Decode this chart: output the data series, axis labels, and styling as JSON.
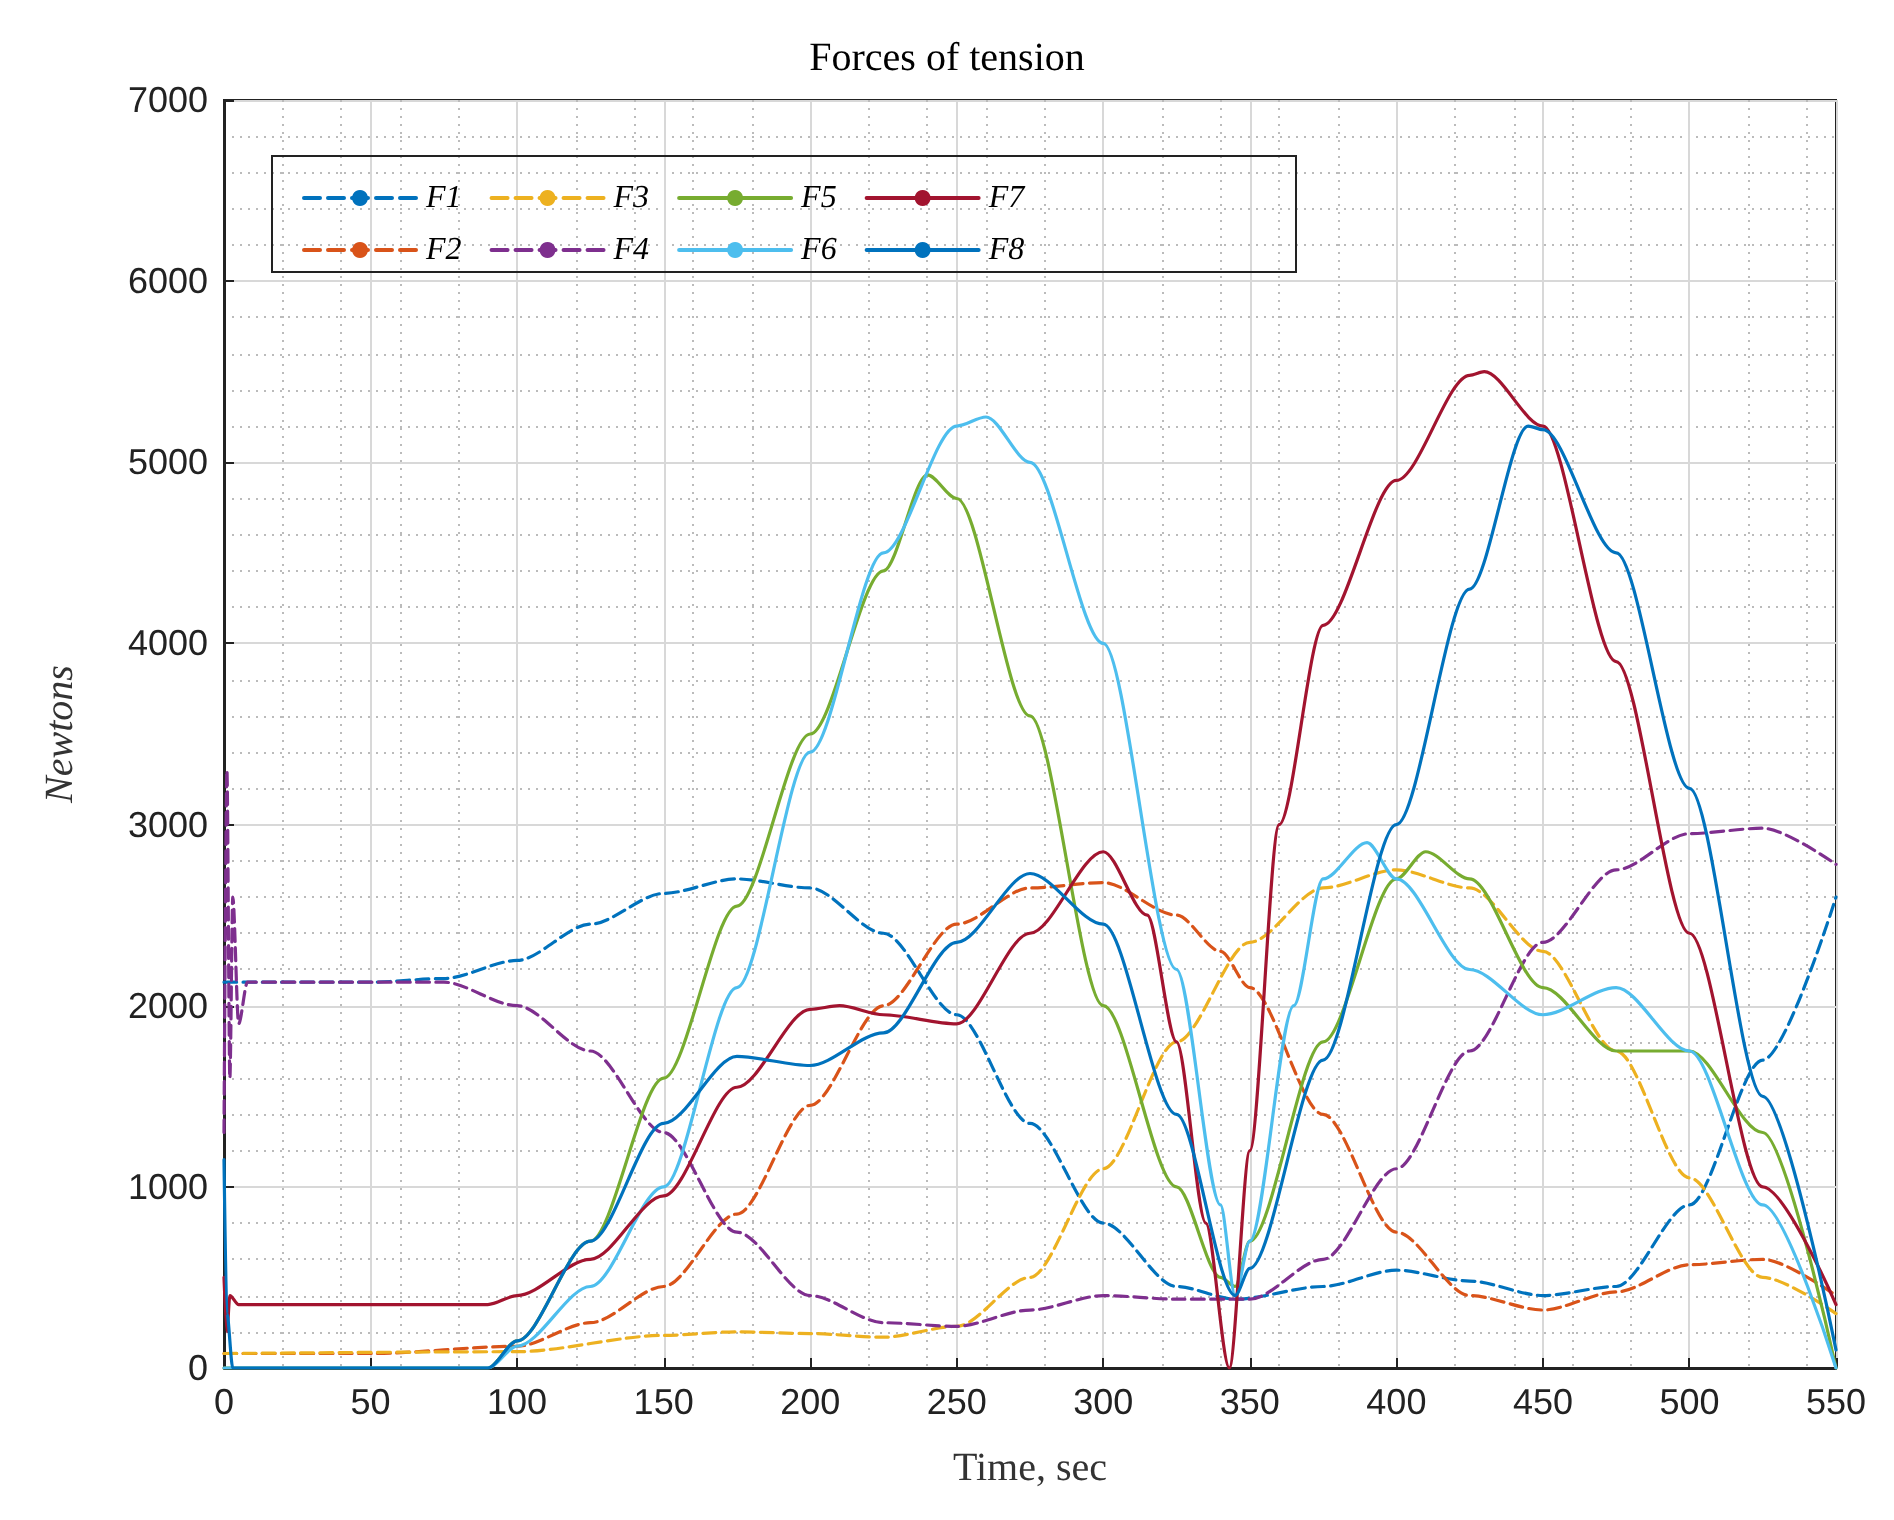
{
  "chart_data": {
    "type": "line",
    "title": "Forces of tension",
    "xlabel": "Time, sec",
    "ylabel": "Newtons",
    "xlim": [
      0,
      550
    ],
    "xticks": [
      0,
      50,
      100,
      150,
      200,
      250,
      300,
      350,
      400,
      450,
      500,
      550
    ],
    "ylim": [
      0,
      7000
    ],
    "yticks": [
      0,
      1000,
      2000,
      3000,
      4000,
      5000,
      6000,
      7000
    ],
    "grid": true,
    "legend": "top left",
    "marker": "none",
    "series": [
      {
        "name": "F1",
        "color": "#0072bd",
        "line_style": "dashed",
        "x": [
          0,
          50,
          75,
          100,
          125,
          150,
          175,
          200,
          225,
          250,
          275,
          300,
          325,
          345,
          375,
          400,
          425,
          450,
          475,
          500,
          525,
          550
        ],
        "values": [
          2130,
          2130,
          2150,
          2250,
          2450,
          2620,
          2700,
          2650,
          2400,
          1950,
          1350,
          800,
          450,
          380,
          450,
          540,
          480,
          400,
          450,
          900,
          1700,
          2600
        ]
      },
      {
        "name": "F2",
        "color": "#d95319",
        "line_style": "dashed",
        "x": [
          0,
          50,
          100,
          125,
          150,
          175,
          200,
          225,
          250,
          275,
          300,
          325,
          340,
          350,
          375,
          400,
          425,
          450,
          475,
          500,
          525,
          550
        ],
        "values": [
          80,
          80,
          120,
          250,
          450,
          850,
          1450,
          2000,
          2450,
          2650,
          2680,
          2500,
          2300,
          2100,
          1400,
          750,
          400,
          320,
          420,
          570,
          600,
          400
        ]
      },
      {
        "name": "F3",
        "color": "#edb120",
        "line_style": "dashed",
        "x": [
          0,
          100,
          150,
          175,
          200,
          225,
          250,
          275,
          300,
          325,
          350,
          375,
          400,
          425,
          450,
          475,
          500,
          525,
          550
        ],
        "values": [
          80,
          90,
          180,
          200,
          190,
          170,
          230,
          500,
          1100,
          1800,
          2350,
          2650,
          2750,
          2650,
          2300,
          1750,
          1050,
          500,
          300
        ]
      },
      {
        "name": "F4",
        "color": "#7e2f8e",
        "line_style": "dashed",
        "x": [
          0,
          1,
          2,
          3,
          5,
          8,
          75,
          100,
          125,
          150,
          175,
          200,
          225,
          250,
          275,
          300,
          325,
          350,
          375,
          400,
          425,
          450,
          475,
          500,
          525,
          550
        ],
        "values": [
          1300,
          3300,
          1600,
          2600,
          1900,
          2130,
          2130,
          2000,
          1750,
          1300,
          750,
          400,
          250,
          230,
          320,
          400,
          380,
          380,
          600,
          1100,
          1750,
          2350,
          2750,
          2950,
          2980,
          2780
        ]
      },
      {
        "name": "F5",
        "color": "#77ac30",
        "line_style": "solid",
        "x": [
          0,
          90,
          100,
          125,
          150,
          175,
          200,
          225,
          240,
          250,
          275,
          300,
          325,
          340,
          345,
          350,
          375,
          400,
          410,
          425,
          450,
          475,
          500,
          525,
          550
        ],
        "values": [
          0,
          0,
          150,
          700,
          1600,
          2550,
          3500,
          4400,
          4930,
          4800,
          3600,
          2000,
          1000,
          500,
          450,
          700,
          1800,
          2700,
          2850,
          2700,
          2100,
          1750,
          1750,
          1300,
          0
        ]
      },
      {
        "name": "F6",
        "color": "#4dbeee",
        "line_style": "solid",
        "x": [
          0,
          90,
          100,
          125,
          150,
          175,
          200,
          225,
          250,
          260,
          275,
          300,
          325,
          340,
          345,
          350,
          365,
          375,
          390,
          400,
          425,
          450,
          475,
          500,
          525,
          550
        ],
        "values": [
          0,
          0,
          120,
          450,
          1000,
          2100,
          3400,
          4500,
          5200,
          5250,
          5000,
          4000,
          2200,
          900,
          400,
          700,
          2000,
          2700,
          2900,
          2700,
          2200,
          1950,
          2100,
          1750,
          900,
          0
        ]
      },
      {
        "name": "F7",
        "color": "#a2142f",
        "line_style": "solid",
        "x": [
          0,
          1,
          2,
          5,
          50,
          90,
          100,
          125,
          150,
          175,
          200,
          210,
          225,
          250,
          275,
          300,
          315,
          325,
          335,
          343,
          350,
          360,
          375,
          400,
          425,
          430,
          450,
          475,
          500,
          525,
          550
        ],
        "values": [
          500,
          200,
          400,
          350,
          350,
          350,
          400,
          600,
          950,
          1550,
          1980,
          2000,
          1950,
          1900,
          2400,
          2850,
          2500,
          1800,
          800,
          0,
          1200,
          3000,
          4100,
          4900,
          5480,
          5500,
          5200,
          3900,
          2400,
          1000,
          350
        ]
      },
      {
        "name": "F8",
        "color": "#0072bd",
        "line_style": "solid",
        "x": [
          0,
          1,
          3,
          90,
          100,
          125,
          150,
          175,
          200,
          225,
          250,
          275,
          300,
          325,
          345,
          350,
          375,
          400,
          425,
          445,
          450,
          475,
          500,
          525,
          550
        ],
        "values": [
          1150,
          300,
          0,
          0,
          150,
          700,
          1350,
          1720,
          1670,
          1850,
          2350,
          2730,
          2450,
          1400,
          400,
          550,
          1700,
          3000,
          4300,
          5200,
          5180,
          4500,
          3200,
          1500,
          100
        ]
      }
    ]
  }
}
